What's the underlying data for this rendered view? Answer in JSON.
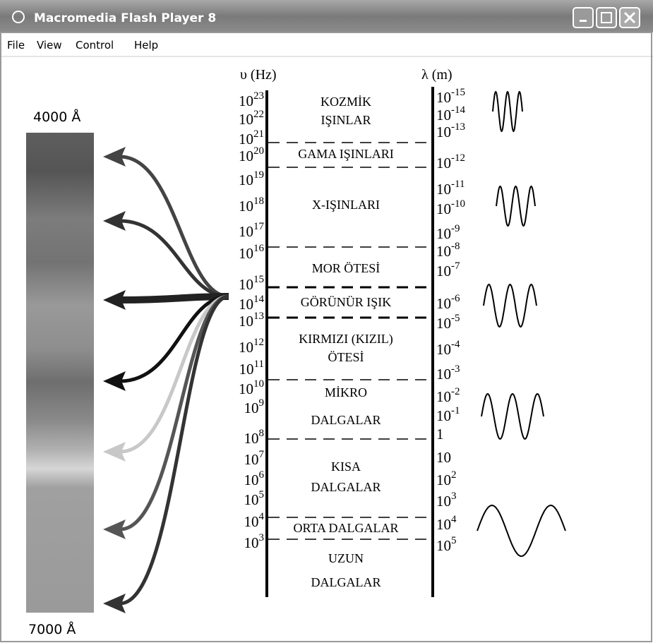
{
  "window": {
    "title": "Macromedia Flash Player 8",
    "menu": [
      "File",
      "View",
      "Control",
      "Help"
    ]
  },
  "diagram": {
    "frequency_axis_label": "υ (Hz)",
    "wavelength_axis_label": "λ (m)",
    "violet_label": "4000 Å",
    "red_label": "7000 Å",
    "frequency_ticks": [
      {
        "base": "10",
        "exp": "23"
      },
      {
        "base": "10",
        "exp": "22"
      },
      {
        "base": "10",
        "exp": "21"
      },
      {
        "base": "10",
        "exp": "20"
      },
      {
        "base": "10",
        "exp": "19"
      },
      {
        "base": "10",
        "exp": "18"
      },
      {
        "base": "10",
        "exp": "17"
      },
      {
        "base": "10",
        "exp": "16"
      },
      {
        "base": "10",
        "exp": "15"
      },
      {
        "base": "10",
        "exp": "14"
      },
      {
        "base": "10",
        "exp": "13"
      },
      {
        "base": "10",
        "exp": "12"
      },
      {
        "base": "10",
        "exp": "11"
      },
      {
        "base": "10",
        "exp": "10"
      },
      {
        "base": "10",
        "exp": "9"
      },
      {
        "base": "10",
        "exp": "8"
      },
      {
        "base": "10",
        "exp": "7"
      },
      {
        "base": "10",
        "exp": "6"
      },
      {
        "base": "10",
        "exp": "5"
      },
      {
        "base": "10",
        "exp": "4"
      },
      {
        "base": "10",
        "exp": "3"
      }
    ],
    "wavelength_ticks": [
      {
        "base": "10",
        "exp": "-15"
      },
      {
        "base": "10",
        "exp": "-14"
      },
      {
        "base": "10",
        "exp": "-13"
      },
      {
        "base": "10",
        "exp": "-12"
      },
      {
        "base": "10",
        "exp": "-11"
      },
      {
        "base": "10",
        "exp": "-10"
      },
      {
        "base": "10",
        "exp": "-9"
      },
      {
        "base": "10",
        "exp": "-8"
      },
      {
        "base": "10",
        "exp": "-7"
      },
      {
        "base": "10",
        "exp": "-6"
      },
      {
        "base": "10",
        "exp": "-5"
      },
      {
        "base": "10",
        "exp": "-4"
      },
      {
        "base": "10",
        "exp": "-3"
      },
      {
        "base": "10",
        "exp": "-2"
      },
      {
        "base": "10",
        "exp": "-1"
      },
      {
        "base": "1"
      },
      {
        "base": "10"
      },
      {
        "base": "10",
        "exp": "2"
      },
      {
        "base": "10",
        "exp": "3"
      },
      {
        "base": "10",
        "exp": "4"
      },
      {
        "base": "10",
        "exp": "5"
      }
    ],
    "bands": [
      {
        "lines": [
          "KOZMİK",
          "IŞINLAR"
        ]
      },
      {
        "lines": [
          "GAMA IŞINLARI"
        ]
      },
      {
        "lines": [
          "X-IŞINLARI"
        ]
      },
      {
        "lines": [
          "MOR ÖTESİ"
        ]
      },
      {
        "lines": [
          "GÖRÜNÜR IŞIK"
        ]
      },
      {
        "lines": [
          "KIRMIZI (KIZIL)",
          "ÖTESİ"
        ]
      },
      {
        "lines": [
          "MİKRO",
          "DALGALAR"
        ]
      },
      {
        "lines": [
          "KISA",
          "DALGALAR"
        ]
      },
      {
        "lines": [
          "ORTA DALGALAR"
        ]
      },
      {
        "lines": [
          "UZUN",
          "DALGALAR"
        ]
      }
    ]
  }
}
